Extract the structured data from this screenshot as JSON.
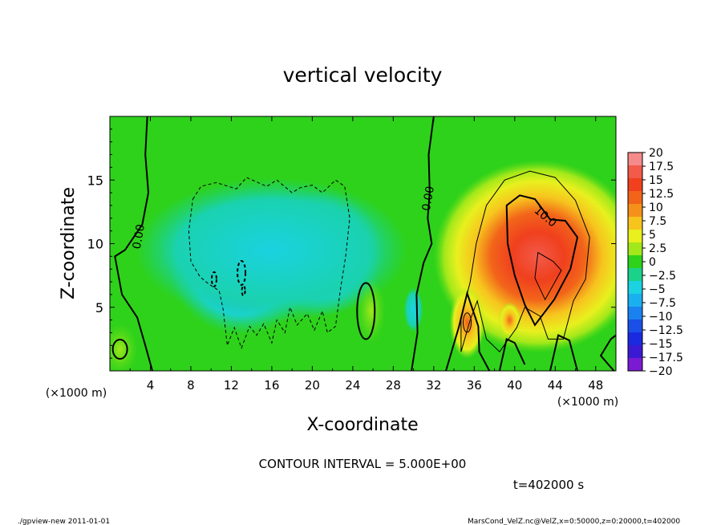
{
  "chart_data": {
    "type": "heatmap",
    "title": "vertical velocity",
    "xlabel": "X-coordinate",
    "ylabel": "Z-coordinate",
    "x_unit_left": "(×1000 m)",
    "x_unit_right": "(×1000 m)",
    "xlim": [
      0,
      50
    ],
    "ylim": [
      0,
      20
    ],
    "x_ticks": [
      4,
      8,
      12,
      16,
      20,
      24,
      28,
      32,
      36,
      40,
      44,
      48
    ],
    "x_tick_labels": [
      "4",
      "8",
      "12",
      "16",
      "20",
      "24",
      "28",
      "32",
      "36",
      "40",
      "44",
      "48"
    ],
    "y_ticks": [
      5,
      10,
      15
    ],
    "y_tick_labels": [
      "5",
      "10",
      "15"
    ],
    "colorbar": {
      "levels": [
        20,
        17.5,
        15,
        12.5,
        10,
        7.5,
        5,
        2.5,
        0,
        -2.5,
        -5,
        -7.5,
        -10,
        -12.5,
        -15,
        -17.5,
        -20
      ],
      "labels": [
        "20",
        "17.5",
        "15",
        "12.5",
        "10",
        "7.5",
        "5",
        "2.5",
        "0",
        "−2.5",
        "−5",
        "−7.5",
        "−10",
        "−12.5",
        "−15",
        "−17.5",
        "−20"
      ],
      "colors": [
        "#f58a8a",
        "#f25a4a",
        "#f0401e",
        "#f2641a",
        "#f5901a",
        "#f7c41e",
        "#e8f01e",
        "#a2e81a",
        "#2ed21a",
        "#1ad28a",
        "#1ad2e0",
        "#1ab0f0",
        "#1a82f0",
        "#1a50e8",
        "#1a2ae0",
        "#3a1ad2",
        "#7a1ad2"
      ]
    },
    "contour_labels": [
      {
        "text": "0.00",
        "x": 3.2,
        "z": 10.5
      },
      {
        "text": "0.00",
        "x": 31.8,
        "z": 13.5
      },
      {
        "text": "10.0",
        "x": 42.8,
        "z": 11.9
      }
    ],
    "contour_interval_text": "CONTOUR INTERVAL = 5.000E+00",
    "time_text": "t=402000 s"
  },
  "footer": {
    "left": "./gpview-new  2011-01-01",
    "right": "MarsCond_VelZ.nc@VelZ,x=0:50000,z=0:20000,t=402000"
  }
}
